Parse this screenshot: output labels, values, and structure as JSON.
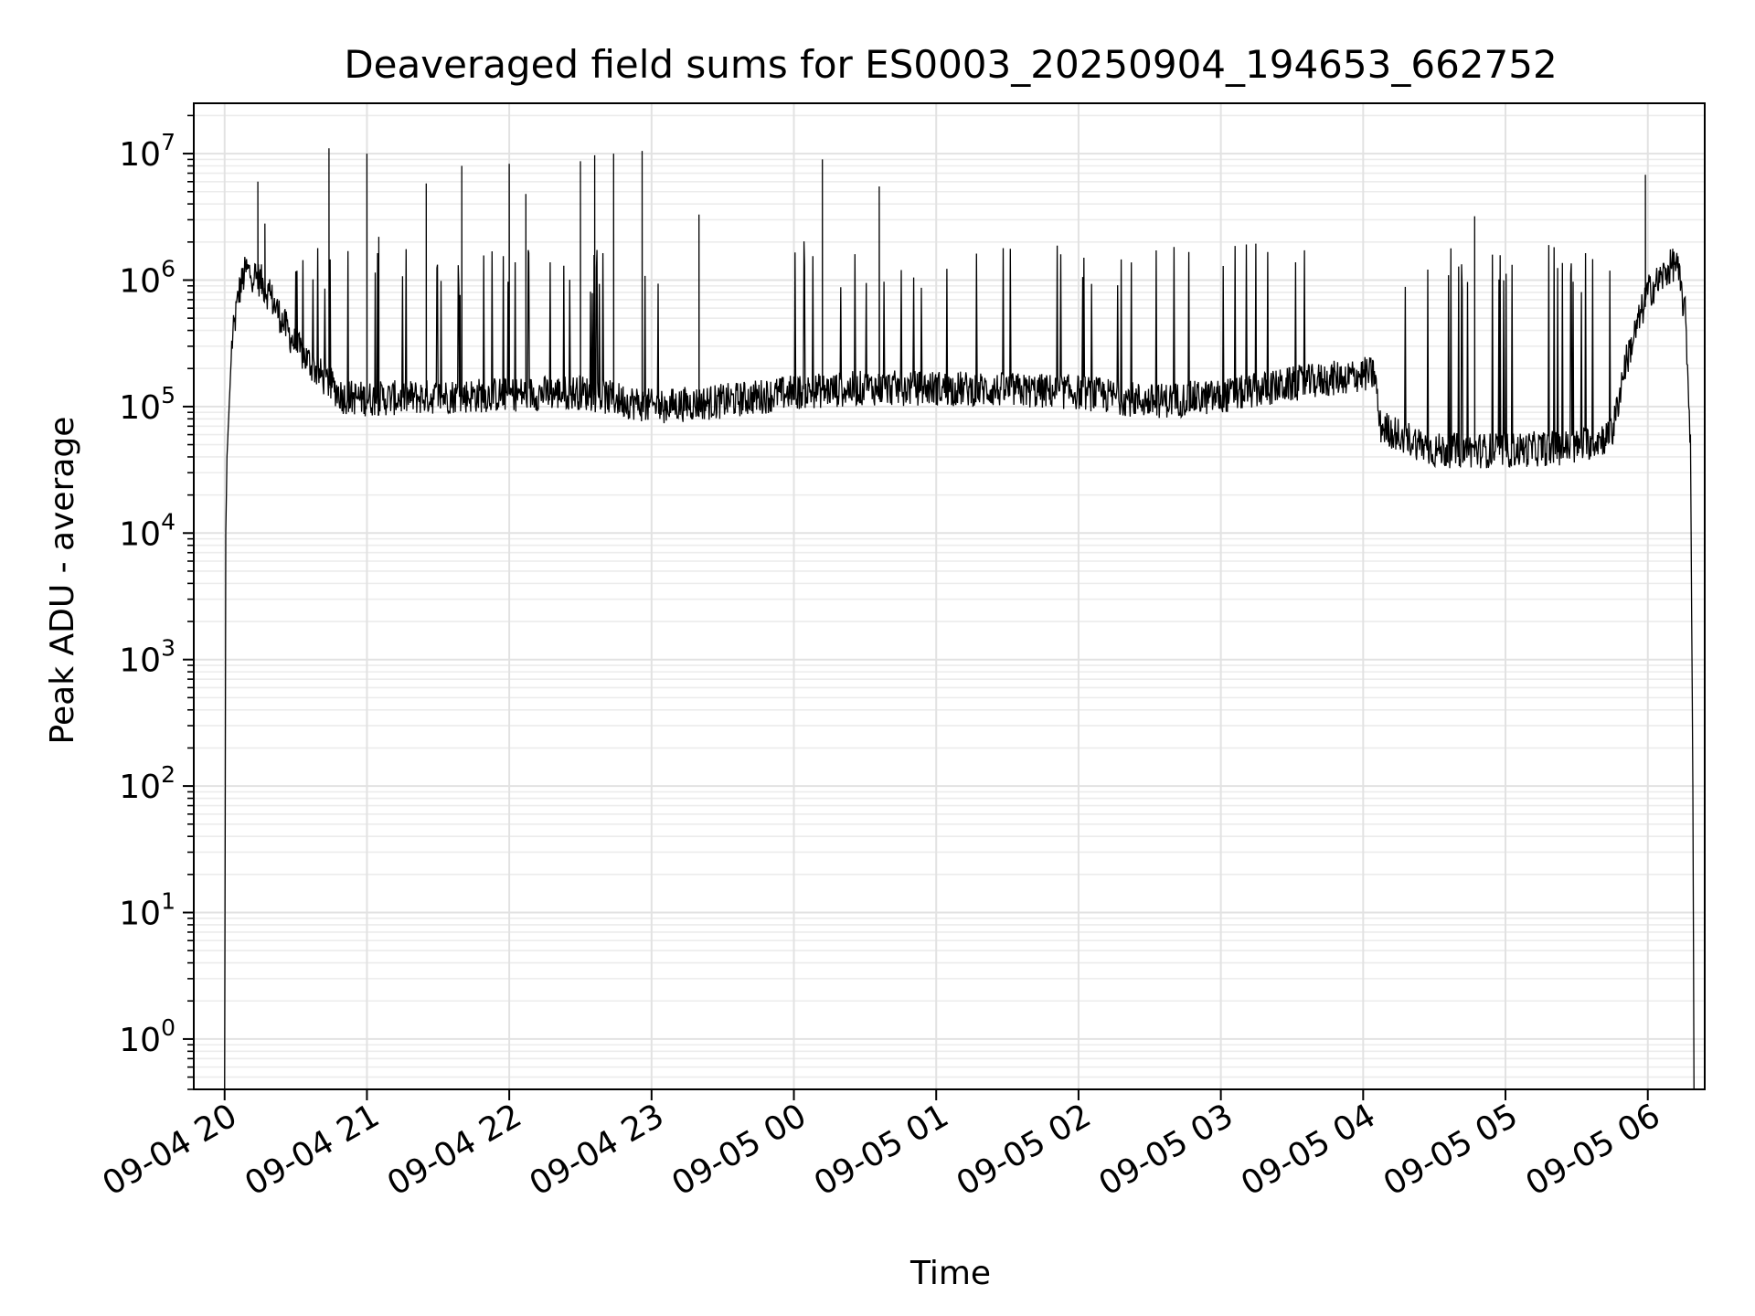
{
  "chart_data": {
    "type": "line",
    "title": "Deaveraged field sums for ES0003_20250904_194653_662752",
    "xlabel": "Time",
    "ylabel": "Peak ADU - average",
    "yscale": "log",
    "grid": true,
    "legend": "none",
    "x_range": [
      "2025-09-04 19:47",
      "2025-09-05 06:24"
    ],
    "y_range": [
      0.4,
      25000000
    ],
    "x_ticks": [
      {
        "label": "09-04 20",
        "value": "2025-09-04 20:00"
      },
      {
        "label": "09-04 21",
        "value": "2025-09-04 21:00"
      },
      {
        "label": "09-04 22",
        "value": "2025-09-04 22:00"
      },
      {
        "label": "09-04 23",
        "value": "2025-09-04 23:00"
      },
      {
        "label": "09-05 00",
        "value": "2025-09-05 00:00"
      },
      {
        "label": "09-05 01",
        "value": "2025-09-05 01:00"
      },
      {
        "label": "09-05 02",
        "value": "2025-09-05 02:00"
      },
      {
        "label": "09-05 03",
        "value": "2025-09-05 03:00"
      },
      {
        "label": "09-05 04",
        "value": "2025-09-05 04:00"
      },
      {
        "label": "09-05 05",
        "value": "2025-09-05 05:00"
      },
      {
        "label": "09-05 06",
        "value": "2025-09-05 06:00"
      }
    ],
    "y_ticks": [
      {
        "base": "10",
        "exp": "0",
        "value": 1
      },
      {
        "base": "10",
        "exp": "1",
        "value": 10
      },
      {
        "base": "10",
        "exp": "2",
        "value": 100
      },
      {
        "base": "10",
        "exp": "3",
        "value": 1000
      },
      {
        "base": "10",
        "exp": "4",
        "value": 10000
      },
      {
        "base": "10",
        "exp": "5",
        "value": 100000
      },
      {
        "base": "10",
        "exp": "6",
        "value": 1000000
      },
      {
        "base": "10",
        "exp": "7",
        "value": 10000000
      }
    ],
    "series": [
      {
        "color": "#000000",
        "baseline_points": [
          [
            "2025-09-04 20:00",
            0.3
          ],
          [
            "2025-09-04 20:00:30",
            10000
          ],
          [
            "2025-09-04 20:01",
            40000
          ],
          [
            "2025-09-04 20:03",
            300000
          ],
          [
            "2025-09-04 20:06",
            800000
          ],
          [
            "2025-09-04 20:09",
            1200000
          ],
          [
            "2025-09-04 20:15",
            1000000
          ],
          [
            "2025-09-04 20:20",
            700000
          ],
          [
            "2025-09-04 20:25",
            450000
          ],
          [
            "2025-09-04 20:30",
            300000
          ],
          [
            "2025-09-04 20:40",
            180000
          ],
          [
            "2025-09-04 20:50",
            120000
          ],
          [
            "2025-09-04 21:00",
            115000
          ],
          [
            "2025-09-04 21:30",
            120000
          ],
          [
            "2025-09-04 22:00",
            125000
          ],
          [
            "2025-09-04 22:30",
            130000
          ],
          [
            "2025-09-04 22:50",
            110000
          ],
          [
            "2025-09-04 23:00",
            100000
          ],
          [
            "2025-09-04 23:30",
            110000
          ],
          [
            "2025-09-05 00:00",
            130000
          ],
          [
            "2025-09-05 00:30",
            140000
          ],
          [
            "2025-09-05 01:00",
            140000
          ],
          [
            "2025-09-05 01:30",
            135000
          ],
          [
            "2025-09-05 02:00",
            130000
          ],
          [
            "2025-09-05 02:30",
            110000
          ],
          [
            "2025-09-05 03:00",
            120000
          ],
          [
            "2025-09-05 03:30",
            150000
          ],
          [
            "2025-09-05 04:00",
            180000
          ],
          [
            "2025-09-05 04:05",
            180000
          ],
          [
            "2025-09-05 04:07",
            70000
          ],
          [
            "2025-09-05 04:20",
            55000
          ],
          [
            "2025-09-05 04:30",
            45000
          ],
          [
            "2025-09-05 05:00",
            45000
          ],
          [
            "2025-09-05 05:30",
            48000
          ],
          [
            "2025-09-05 05:45",
            60000
          ],
          [
            "2025-09-05 05:50",
            200000
          ],
          [
            "2025-09-05 05:55",
            400000
          ],
          [
            "2025-09-05 06:00",
            800000
          ],
          [
            "2025-09-05 06:05",
            1000000
          ],
          [
            "2025-09-05 06:10",
            1300000
          ],
          [
            "2025-09-05 06:12",
            1400000
          ],
          [
            "2025-09-05 06:16",
            500000
          ],
          [
            "2025-09-05 06:18",
            50000
          ],
          [
            "2025-09-05 06:19",
            100
          ],
          [
            "2025-09-05 06:19:30",
            0.3
          ]
        ],
        "noise_factor": 1.5,
        "spikes": [
          [
            "2025-09-04 20:14",
            6000000
          ],
          [
            "2025-09-04 20:17",
            2800000
          ],
          [
            "2025-09-04 20:44",
            11000000
          ],
          [
            "2025-09-04 21:00",
            10000000
          ],
          [
            "2025-09-04 21:05",
            2200000
          ],
          [
            "2025-09-04 21:25",
            5800000
          ],
          [
            "2025-09-04 21:40",
            8000000
          ],
          [
            "2025-09-04 22:00",
            8300000
          ],
          [
            "2025-09-04 22:07",
            4800000
          ],
          [
            "2025-09-04 22:30",
            8700000
          ],
          [
            "2025-09-04 22:36",
            9700000
          ],
          [
            "2025-09-04 22:44",
            10000000
          ],
          [
            "2025-09-04 22:56",
            10500000
          ],
          [
            "2025-09-04 23:20",
            3300000
          ],
          [
            "2025-09-05 00:12",
            9000000
          ],
          [
            "2025-09-05 00:36",
            5500000
          ],
          [
            "2025-09-05 04:47",
            3200000
          ],
          [
            "2025-09-05 05:59",
            6800000
          ]
        ],
        "burst_ranges": [
          {
            "from": "2025-09-04 20:05",
            "to": "2025-09-04 23:05",
            "peak": 1500000
          },
          {
            "from": "2025-09-05 00:00",
            "to": "2025-09-05 00:30",
            "peak": 1700000
          },
          {
            "from": "2025-09-05 00:30",
            "to": "2025-09-05 03:00",
            "peak": 1600000
          },
          {
            "from": "2025-09-05 03:00",
            "to": "2025-09-05 03:55",
            "peak": 2000000
          },
          {
            "from": "2025-09-05 04:15",
            "to": "2025-09-05 05:45",
            "peak": 1600000
          }
        ]
      }
    ]
  }
}
